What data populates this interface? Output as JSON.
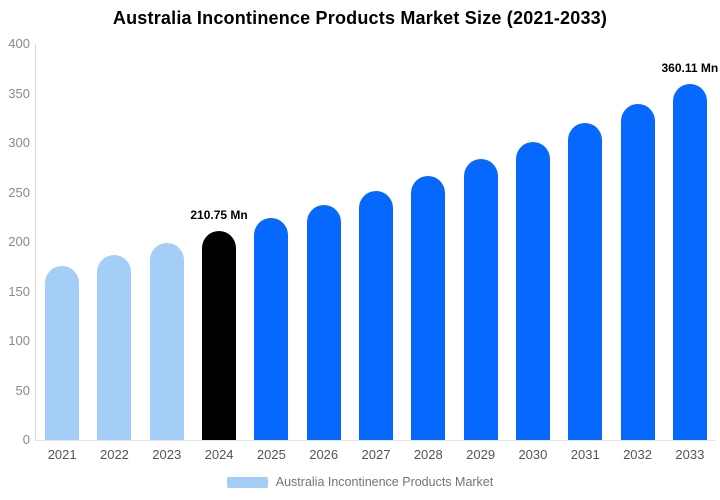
{
  "chart_data": {
    "type": "bar",
    "title": "Australia Incontinence Products Market Size (2021-2033)",
    "categories": [
      "2021",
      "2022",
      "2023",
      "2024",
      "2025",
      "2026",
      "2027",
      "2028",
      "2029",
      "2030",
      "2031",
      "2032",
      "2033"
    ],
    "values": [
      176,
      187,
      199,
      210.75,
      224,
      237,
      252,
      267,
      284,
      301,
      320,
      339,
      360.11
    ],
    "unit": "Mn",
    "annotations": [
      {
        "category": "2024",
        "text": "210.75 Mn"
      },
      {
        "category": "2033",
        "text": "360.11 Mn"
      }
    ],
    "bar_colors": [
      "#a4cdf8",
      "#a4cdf8",
      "#a4cdf8",
      "#000000",
      "#0668fc",
      "#0668fc",
      "#0668fc",
      "#0668fc",
      "#0668fc",
      "#0668fc",
      "#0668fc",
      "#0668fc",
      "#0668fc"
    ],
    "xlabel": "",
    "ylabel": "",
    "ylim": [
      0,
      400
    ],
    "y_ticks": [
      0,
      50,
      100,
      150,
      200,
      250,
      300,
      350,
      400
    ],
    "grid": "off",
    "legend_position": "bottom-center",
    "legend": [
      {
        "label": "Australia Incontinence Products Market",
        "color": "#a4cdf8"
      }
    ]
  },
  "colors": {
    "background": "#ffffff",
    "light_blue_bar": "#a4cdf8",
    "bright_blue_bar": "#0668fc",
    "highlight_black_bar": "#000000",
    "axis_line": "#d9d9d9",
    "y_tick_text": "#8a8a8a",
    "x_tick_text": "#555555",
    "title_text": "#000000",
    "legend_text": "#757575"
  }
}
